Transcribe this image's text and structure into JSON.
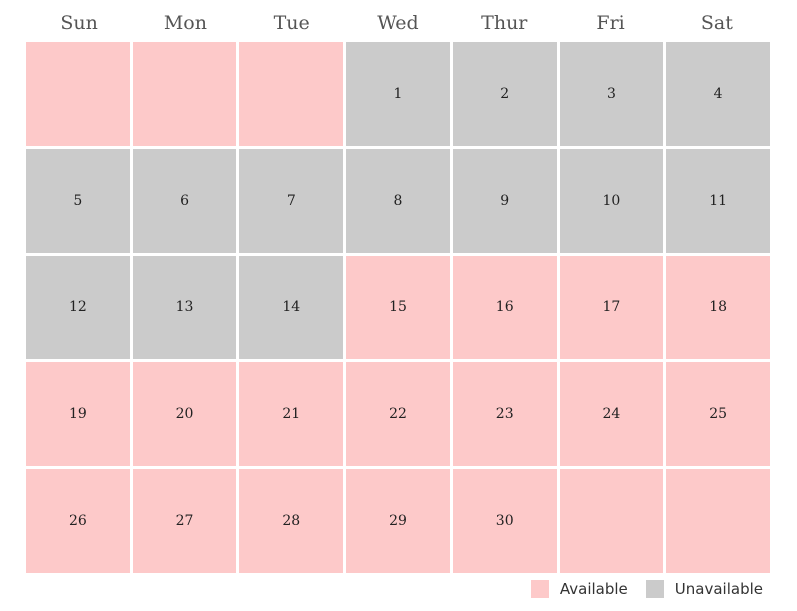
{
  "weekdays": [
    "Sun",
    "Mon",
    "Tue",
    "Wed",
    "Thur",
    "Fri",
    "Sat"
  ],
  "legend": [
    {
      "label": "Available",
      "color": "#fdc9c9"
    },
    {
      "label": "Unavailable",
      "color": "#cbcbcb"
    }
  ],
  "weeks": [
    [
      {
        "day": null,
        "status": "Available"
      },
      {
        "day": null,
        "status": "Available"
      },
      {
        "day": null,
        "status": "Available"
      },
      {
        "day": 1,
        "status": "Unavailable"
      },
      {
        "day": 2,
        "status": "Unavailable"
      },
      {
        "day": 3,
        "status": "Unavailable"
      },
      {
        "day": 4,
        "status": "Unavailable"
      }
    ],
    [
      {
        "day": 5,
        "status": "Unavailable"
      },
      {
        "day": 6,
        "status": "Unavailable"
      },
      {
        "day": 7,
        "status": "Unavailable"
      },
      {
        "day": 8,
        "status": "Unavailable"
      },
      {
        "day": 9,
        "status": "Unavailable"
      },
      {
        "day": 10,
        "status": "Unavailable"
      },
      {
        "day": 11,
        "status": "Unavailable"
      }
    ],
    [
      {
        "day": 12,
        "status": "Unavailable"
      },
      {
        "day": 13,
        "status": "Unavailable"
      },
      {
        "day": 14,
        "status": "Unavailable"
      },
      {
        "day": 15,
        "status": "Available"
      },
      {
        "day": 16,
        "status": "Available"
      },
      {
        "day": 17,
        "status": "Available"
      },
      {
        "day": 18,
        "status": "Available"
      }
    ],
    [
      {
        "day": 19,
        "status": "Available"
      },
      {
        "day": 20,
        "status": "Available"
      },
      {
        "day": 21,
        "status": "Available"
      },
      {
        "day": 22,
        "status": "Available"
      },
      {
        "day": 23,
        "status": "Available"
      },
      {
        "day": 24,
        "status": "Available"
      },
      {
        "day": 25,
        "status": "Available"
      }
    ],
    [
      {
        "day": 26,
        "status": "Available"
      },
      {
        "day": 27,
        "status": "Available"
      },
      {
        "day": 28,
        "status": "Available"
      },
      {
        "day": 29,
        "status": "Available"
      },
      {
        "day": 30,
        "status": "Available"
      },
      {
        "day": null,
        "status": "Available"
      },
      {
        "day": null,
        "status": "Available"
      }
    ]
  ]
}
